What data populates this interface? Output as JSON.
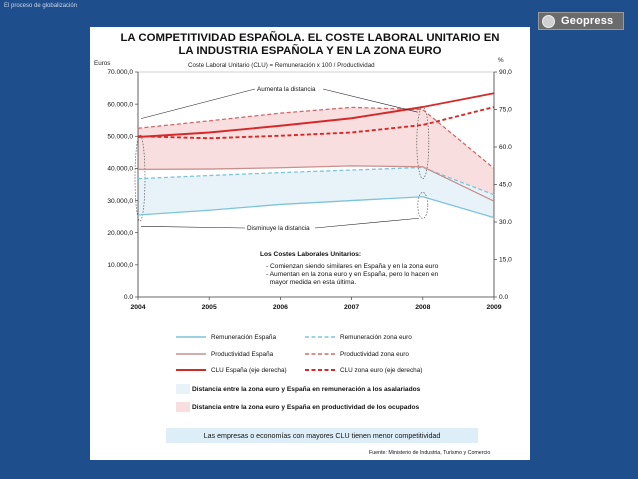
{
  "header": {
    "slide_label": "El proceso de globalización",
    "logo_text": "Geopress"
  },
  "slide": {
    "title_line1": "LA COMPETITIVIDAD ESPAÑOLA. EL COSTE LABORAL UNITARIO EN",
    "title_line2": "LA INDUSTRIA ESPAÑOLA Y EN LA ZONA EURO",
    "subtitle": "Coste Laboral Unitario (CLU) = Remuneración x 100 / Productividad",
    "annotation_top": "Aumenta la distancia",
    "annotation_bottom": "Disminuye la distancia",
    "notes_heading": "Los Costes Laborales Unitarios:",
    "notes_line1": "- Comienzan siendo similares en España y en la zona euro",
    "notes_line2": "- Aumentan en la zona euro y en España, pero lo hacen en",
    "notes_line3": "  mayor medida en esta última.",
    "box_remuneracion": "Distancia entre la zona euro y España en remuneración a los asalariados",
    "box_productividad": "Distancia entre la zona euro y España en productividad de los ocupados",
    "conclusion": "Las empresas o economías con mayores CLU tienen menor competitividad",
    "source": "Fuente: Ministerio de Industria, Turismo y Comercio"
  },
  "colors": {
    "page_bg": "#1f4e8c",
    "remuneracion": "#7ec4d8",
    "productividad": "#c98f8f",
    "clu": "#d42a2a",
    "fill_remuneracion": "#e7f3f8",
    "fill_productividad": "#f8dede",
    "conclusion_bg": "#ddeef8"
  },
  "chart_data": {
    "type": "line",
    "x": [
      "2004",
      "2005",
      "2006",
      "2007",
      "2008",
      "2009"
    ],
    "ylabel_left": "Euros",
    "ylabel_right": "%",
    "ylim_left": [
      0,
      70000
    ],
    "ylim_right": [
      0,
      90
    ],
    "yticks_left": [
      "0.0",
      "10.000,0",
      "20.000,0",
      "30.000,0",
      "40.000,0",
      "50.000,0",
      "60.000,0",
      "70.000,0"
    ],
    "yticks_right": [
      "0.0",
      "15,0",
      "30.0",
      "45,0",
      "60.0",
      "75,0",
      "90,0"
    ],
    "series": [
      {
        "name": "Remuneración España",
        "axis": "left",
        "style": "solid",
        "color": "#7ec4d8",
        "values": [
          25500,
          27000,
          28800,
          30000,
          31200,
          24700
        ]
      },
      {
        "name": "Remuneración zona euro",
        "axis": "left",
        "style": "dashed",
        "color": "#7ec4d8",
        "values": [
          36800,
          37800,
          38700,
          39500,
          40300,
          31800
        ]
      },
      {
        "name": "Productividad España",
        "axis": "left",
        "style": "solid",
        "color": "#c98f8f",
        "values": [
          39700,
          39800,
          40200,
          40800,
          40500,
          29800
        ]
      },
      {
        "name": "Productividad zona euro",
        "axis": "left",
        "style": "dashed",
        "color": "#d06a6a",
        "values": [
          52500,
          54800,
          57200,
          59000,
          58300,
          40000
        ]
      },
      {
        "name": "CLU España (eje derecha)",
        "axis": "right",
        "style": "solid",
        "color": "#d42a2a",
        "values": [
          64.0,
          65.8,
          68.5,
          71.5,
          76.0,
          81.5
        ]
      },
      {
        "name": "CLU zona euro (eje derecha)",
        "axis": "right",
        "style": "dashed",
        "color": "#d42a2a",
        "values": [
          64.3,
          63.5,
          64.5,
          65.8,
          68.8,
          76.0
        ]
      }
    ]
  }
}
